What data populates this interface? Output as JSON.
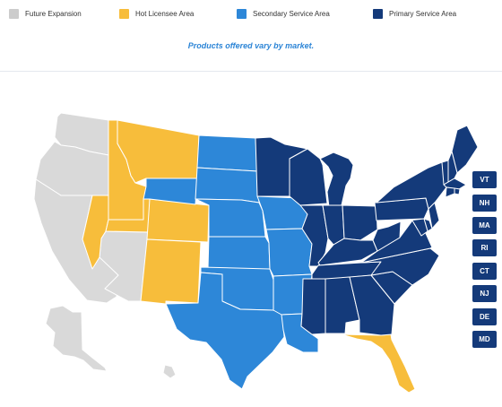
{
  "legend": {
    "items": [
      {
        "label": "Future Expansion",
        "color": "#cccccc",
        "icon": "gray-square-swatch"
      },
      {
        "label": "Hot Licensee Area",
        "color": "#f7bd3b",
        "icon": "yellow-square-swatch"
      },
      {
        "label": "Secondary Service Area",
        "color": "#2d87d8",
        "icon": "blue-square-swatch"
      },
      {
        "label": "Primary Service Area",
        "color": "#143a7a",
        "icon": "navy-square-swatch"
      }
    ]
  },
  "notice": "Products offered vary by market.",
  "map": {
    "colors": {
      "future": "#d9d9d9",
      "hot": "#f7bd3b",
      "secondary": "#2d87d8",
      "primary": "#143a7a",
      "border": "#ffffff"
    },
    "states": {
      "future": [
        "WA",
        "OR",
        "CA",
        "AZ",
        "AK",
        "HI"
      ],
      "hot": [
        "ID",
        "MT",
        "NV",
        "UT",
        "CO",
        "NM",
        "FL"
      ],
      "secondary": [
        "WY",
        "ND",
        "SD",
        "NE",
        "KS",
        "OK",
        "TX",
        "IA",
        "MO",
        "AR",
        "LA"
      ],
      "primary": [
        "MN",
        "WI",
        "IL",
        "MI",
        "IN",
        "OH",
        "KY",
        "TN",
        "MS",
        "AL",
        "GA",
        "SC",
        "NC",
        "VA",
        "WV",
        "PA",
        "NY",
        "ME",
        "VT",
        "NH",
        "MA",
        "RI",
        "CT",
        "NJ",
        "DE",
        "MD"
      ]
    }
  },
  "state_badges": [
    {
      "label": "VT",
      "color": "#143a7a"
    },
    {
      "label": "NH",
      "color": "#143a7a"
    },
    {
      "label": "MA",
      "color": "#143a7a"
    },
    {
      "label": "RI",
      "color": "#143a7a"
    },
    {
      "label": "CT",
      "color": "#143a7a"
    },
    {
      "label": "NJ",
      "color": "#143a7a"
    },
    {
      "label": "DE",
      "color": "#143a7a"
    },
    {
      "label": "MD",
      "color": "#143a7a"
    }
  ]
}
